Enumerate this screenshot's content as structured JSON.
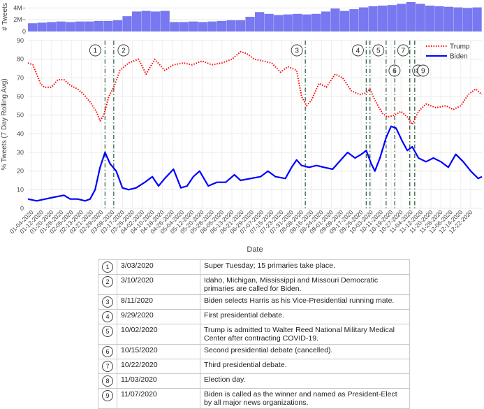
{
  "chart_data": [
    {
      "type": "area",
      "ylabel": "# Tweets",
      "yticks": [
        "4M",
        "2M",
        "0"
      ],
      "ylim": [
        0,
        5000000
      ],
      "x_start": "01-01-2020",
      "x_end": "12-31-2020",
      "values": [
        1.4,
        1.5,
        1.6,
        1.7,
        1.6,
        1.7,
        1.7,
        1.8,
        1.8,
        1.9,
        2.6,
        3.4,
        3.5,
        3.4,
        3.5,
        1.6,
        1.6,
        1.7,
        1.6,
        1.7,
        1.8,
        1.9,
        1.9,
        2.5,
        3.3,
        3.0,
        2.8,
        2.9,
        3.0,
        2.9,
        3.0,
        3.4,
        3.9,
        3.5,
        3.8,
        4.1,
        4.3,
        4.4,
        4.5,
        4.7,
        5.0,
        4.7,
        4.4,
        4.3,
        4.2,
        4.1,
        4.0,
        4.1
      ]
    },
    {
      "type": "line",
      "title": "",
      "xlabel": "Date",
      "ylabel": "% Tweets (7 Day Rolling Avg)",
      "ylim": [
        0,
        90
      ],
      "yticks": [
        "0",
        "10",
        "20",
        "30",
        "40",
        "50",
        "60",
        "70",
        "80",
        "90"
      ],
      "xticks": [
        "01-04-2020",
        "01-12-2020",
        "01-20-2020",
        "01-28-2020",
        "02-05-2020",
        "02-13-2020",
        "02-21-2020",
        "02-29-2020",
        "03-09-2020",
        "03-17-2020",
        "03-25-2020",
        "04-02-2020",
        "04-10-2020",
        "04-18-2020",
        "04-26-2020",
        "05-04-2020",
        "05-12-2020",
        "05-20-2020",
        "05-28-2020",
        "06-05-2020",
        "06-13-2020",
        "06-21-2020",
        "06-29-2020",
        "07-07-2020",
        "07-15-2020",
        "07-23-2020",
        "07-31-2020",
        "08-08-2020",
        "08-16-2020",
        "08-24-2020",
        "09-01-2020",
        "09-09-2020",
        "09-17-2020",
        "09-25-2020",
        "10-03-2020",
        "10-11-2020",
        "10-19-2020",
        "10-27-2020",
        "11-04-2020",
        "11-12-2020",
        "11-20-2020",
        "11-28-2020",
        "12-06-2020",
        "12-14-2020",
        "12-22-2020"
      ],
      "legend": "top-right",
      "series": [
        {
          "name": "Trump",
          "color": "#ff0000",
          "style": "dotted",
          "points": [
            [
              "01-01-2020",
              78
            ],
            [
              "01-05-2020",
              77
            ],
            [
              "01-08-2020",
              72
            ],
            [
              "01-11-2020",
              67
            ],
            [
              "01-14-2020",
              65
            ],
            [
              "01-20-2020",
              65
            ],
            [
              "01-25-2020",
              69
            ],
            [
              "01-30-2020",
              69
            ],
            [
              "02-04-2020",
              66
            ],
            [
              "02-10-2020",
              64
            ],
            [
              "02-15-2020",
              61
            ],
            [
              "02-20-2020",
              57
            ],
            [
              "02-25-2020",
              52
            ],
            [
              "02-28-2020",
              47
            ],
            [
              "03-02-2020",
              50
            ],
            [
              "03-06-2020",
              60
            ],
            [
              "03-10-2020",
              65
            ],
            [
              "03-15-2020",
              74
            ],
            [
              "03-22-2020",
              78
            ],
            [
              "03-30-2020",
              80
            ],
            [
              "04-05-2020",
              72
            ],
            [
              "04-12-2020",
              80
            ],
            [
              "04-20-2020",
              74
            ],
            [
              "04-27-2020",
              77
            ],
            [
              "05-05-2020",
              78
            ],
            [
              "05-12-2020",
              77
            ],
            [
              "05-20-2020",
              79
            ],
            [
              "05-28-2020",
              77
            ],
            [
              "06-05-2020",
              78
            ],
            [
              "06-13-2020",
              80
            ],
            [
              "06-20-2020",
              84
            ],
            [
              "06-25-2020",
              83
            ],
            [
              "07-01-2020",
              80
            ],
            [
              "07-08-2020",
              79
            ],
            [
              "07-15-2020",
              78
            ],
            [
              "07-22-2020",
              73
            ],
            [
              "07-28-2020",
              76
            ],
            [
              "08-04-2020",
              74
            ],
            [
              "08-08-2020",
              60
            ],
            [
              "08-12-2020",
              55
            ],
            [
              "08-16-2020",
              58
            ],
            [
              "08-22-2020",
              67
            ],
            [
              "08-28-2020",
              65
            ],
            [
              "09-04-2020",
              72
            ],
            [
              "09-10-2020",
              70
            ],
            [
              "09-17-2020",
              63
            ],
            [
              "09-24-2020",
              61
            ],
            [
              "09-29-2020",
              62
            ],
            [
              "10-02-2020",
              64
            ],
            [
              "10-06-2020",
              58
            ],
            [
              "10-12-2020",
              51
            ],
            [
              "10-16-2020",
              49
            ],
            [
              "10-22-2020",
              50
            ],
            [
              "10-27-2020",
              52
            ],
            [
              "11-01-2020",
              49
            ],
            [
              "11-05-2020",
              45
            ],
            [
              "11-10-2020",
              52
            ],
            [
              "11-16-2020",
              56
            ],
            [
              "11-24-2020",
              54
            ],
            [
              "12-02-2020",
              55
            ],
            [
              "12-08-2020",
              53
            ],
            [
              "12-14-2020",
              55
            ],
            [
              "12-20-2020",
              61
            ],
            [
              "12-26-2020",
              64
            ],
            [
              "12-31-2020",
              61
            ]
          ]
        },
        {
          "name": "Biden",
          "color": "#0000ff",
          "style": "solid",
          "points": [
            [
              "01-01-2020",
              5
            ],
            [
              "01-08-2020",
              4
            ],
            [
              "01-15-2020",
              5
            ],
            [
              "01-22-2020",
              6
            ],
            [
              "01-30-2020",
              7
            ],
            [
              "02-04-2020",
              5
            ],
            [
              "02-10-2020",
              5
            ],
            [
              "02-16-2020",
              4
            ],
            [
              "02-20-2020",
              5
            ],
            [
              "02-24-2020",
              10
            ],
            [
              "02-28-2020",
              22
            ],
            [
              "03-03-2020",
              30
            ],
            [
              "03-07-2020",
              24
            ],
            [
              "03-12-2020",
              20
            ],
            [
              "03-17-2020",
              11
            ],
            [
              "03-22-2020",
              10
            ],
            [
              "03-28-2020",
              11
            ],
            [
              "04-04-2020",
              14
            ],
            [
              "04-10-2020",
              17
            ],
            [
              "04-15-2020",
              12
            ],
            [
              "04-20-2020",
              16
            ],
            [
              "04-27-2020",
              21
            ],
            [
              "05-03-2020",
              11
            ],
            [
              "05-08-2020",
              12
            ],
            [
              "05-13-2020",
              17
            ],
            [
              "05-18-2020",
              20
            ],
            [
              "05-25-2020",
              12
            ],
            [
              "06-01-2020",
              14
            ],
            [
              "06-08-2020",
              14
            ],
            [
              "06-15-2020",
              18
            ],
            [
              "06-20-2020",
              15
            ],
            [
              "06-28-2020",
              16
            ],
            [
              "07-06-2020",
              17
            ],
            [
              "07-12-2020",
              20
            ],
            [
              "07-18-2020",
              17
            ],
            [
              "07-26-2020",
              16
            ],
            [
              "07-31-2020",
              22
            ],
            [
              "08-04-2020",
              26
            ],
            [
              "08-08-2020",
              23
            ],
            [
              "08-14-2020",
              22
            ],
            [
              "08-20-2020",
              23
            ],
            [
              "08-26-2020",
              22
            ],
            [
              "09-02-2020",
              21
            ],
            [
              "09-10-2020",
              27
            ],
            [
              "09-14-2020",
              30
            ],
            [
              "09-20-2020",
              27
            ],
            [
              "09-25-2020",
              29
            ],
            [
              "09-29-2020",
              31
            ],
            [
              "10-03-2020",
              24
            ],
            [
              "10-06-2020",
              20
            ],
            [
              "10-10-2020",
              27
            ],
            [
              "10-15-2020",
              38
            ],
            [
              "10-19-2020",
              44
            ],
            [
              "10-23-2020",
              43
            ],
            [
              "10-28-2020",
              36
            ],
            [
              "11-01-2020",
              31
            ],
            [
              "11-05-2020",
              33
            ],
            [
              "11-10-2020",
              27
            ],
            [
              "11-16-2020",
              25
            ],
            [
              "11-22-2020",
              27
            ],
            [
              "11-28-2020",
              25
            ],
            [
              "12-04-2020",
              22
            ],
            [
              "12-10-2020",
              29
            ],
            [
              "12-16-2020",
              25
            ],
            [
              "12-22-2020",
              20
            ],
            [
              "12-28-2020",
              16
            ],
            [
              "12-31-2020",
              17
            ]
          ]
        }
      ],
      "event_lines": [
        {
          "id": "1",
          "date": "03-03-2020"
        },
        {
          "id": "2",
          "date": "03-10-2020"
        },
        {
          "id": "3",
          "date": "08-11-2020"
        },
        {
          "id": "4",
          "date": "09-29-2020"
        },
        {
          "id": "5",
          "date": "10-02-2020"
        },
        {
          "id": "6",
          "date": "10-15-2020"
        },
        {
          "id": "7",
          "date": "10-22-2020"
        },
        {
          "id": "8",
          "date": "11-03-2020"
        },
        {
          "id": "9",
          "date": "11-07-2020"
        }
      ]
    }
  ],
  "events_table": [
    {
      "num": "1",
      "date": "3/03/2020",
      "description": "Super Tuesday; 15 primaries take place."
    },
    {
      "num": "2",
      "date": "3/10/2020",
      "description": "Idaho, Michigan, Mississippi and Missouri Democratic primaries are called for Biden."
    },
    {
      "num": "3",
      "date": "8/11/2020",
      "description": "Biden selects Harris as his Vice-Presidential running mate."
    },
    {
      "num": "4",
      "date": "9/29/2020",
      "description": "First presidential debate."
    },
    {
      "num": "5",
      "date": "10/02/2020",
      "description": "Trump is admitted to Walter Reed National Military Medical Center after contracting COVID-19."
    },
    {
      "num": "6",
      "date": "10/15/2020",
      "description": "Second presidential debate (cancelled)."
    },
    {
      "num": "7",
      "date": "10/22/2020",
      "description": "Third presidential debate."
    },
    {
      "num": "8",
      "date": "11/03/2020",
      "description": "Election day."
    },
    {
      "num": "9",
      "date": "11/07/2020",
      "description": "Biden is called as the winner and named as President-Elect by all major news organizations."
    }
  ]
}
